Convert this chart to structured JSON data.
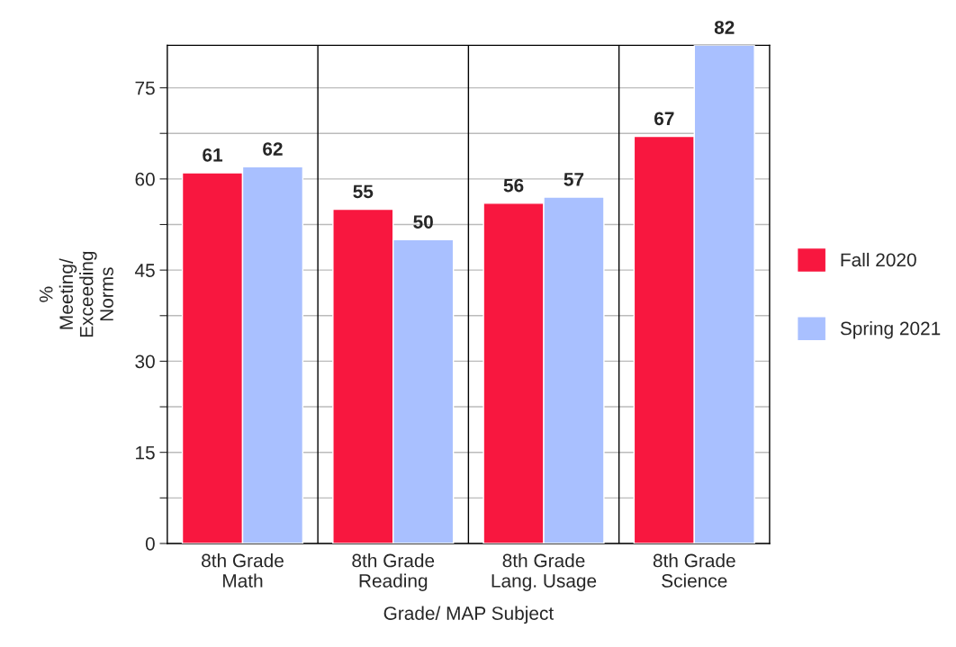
{
  "chart_data": {
    "type": "bar",
    "xlabel": "Grade/ MAP Subject",
    "ylabel": "%\nMeeting/\nExceeding\nNorms",
    "categories": [
      "8th Grade\nMath",
      "8th Grade\nReading",
      "8th Grade\nLang. Usage",
      "8th Grade\nScience"
    ],
    "series": [
      {
        "name": "Fall 2020",
        "color": "#f8173f",
        "values": [
          61,
          55,
          56,
          67
        ]
      },
      {
        "name": "Spring 2021",
        "color": "#a9c0ff",
        "values": [
          62,
          50,
          57,
          82
        ]
      }
    ],
    "ylim": [
      0,
      82
    ],
    "yticks": [
      0,
      {
        "value": 7.5,
        "label": null
      },
      15,
      {
        "value": 22.5,
        "label": null
      },
      30,
      {
        "value": 37.5,
        "label": null
      },
      45,
      {
        "value": 52.5,
        "label": null
      },
      60,
      {
        "value": 67.5,
        "label": null
      },
      75
    ],
    "grid": "y",
    "legend": "right",
    "data_labels": true
  }
}
